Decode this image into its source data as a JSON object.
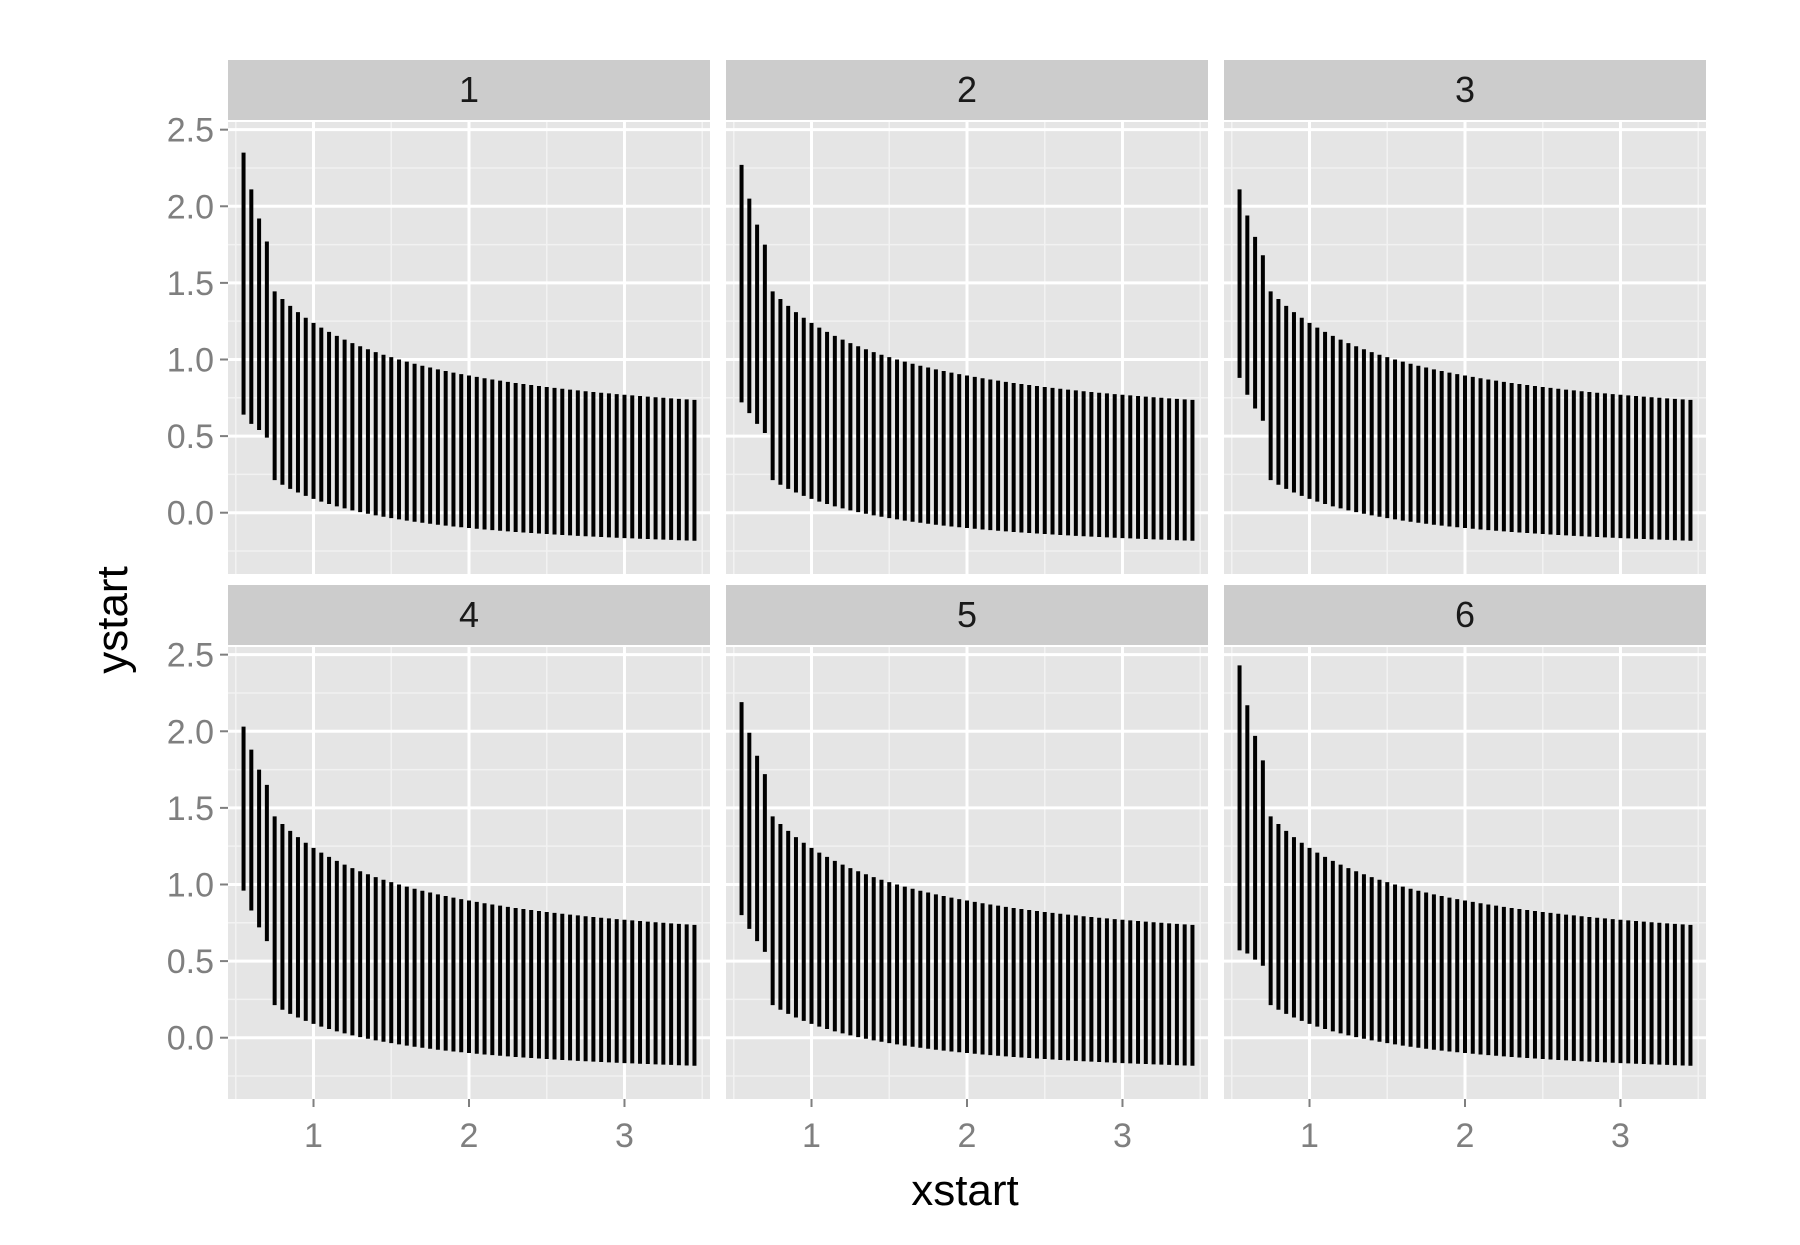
{
  "chart_data": {
    "type": "facet-segment",
    "title": "",
    "xlabel": "xstart",
    "ylabel": "ystart",
    "xlim": [
      0.45,
      3.55
    ],
    "ylim": [
      -0.4,
      2.55
    ],
    "x_ticks": [
      1,
      2,
      3
    ],
    "y_ticks": [
      0.0,
      0.5,
      1.0,
      1.5,
      2.0,
      2.5
    ],
    "y_tick_labels": [
      "0.0",
      "0.5",
      "1.0",
      "1.5",
      "2.0",
      "2.5"
    ],
    "grid": true,
    "layout": {
      "rows": 2,
      "cols": 3
    },
    "segments_x": {
      "start": 0.55,
      "step": 0.05,
      "count": 59
    },
    "panels": [
      {
        "label": "1",
        "first_segments": [
          {
            "x": 0.55,
            "y_start": 0.64,
            "y_end": 2.35
          },
          {
            "x": 0.6,
            "y_start": 0.58,
            "y_end": 2.11
          },
          {
            "x": 0.65,
            "y_start": 0.54,
            "y_end": 1.92
          },
          {
            "x": 0.7,
            "y_start": 0.49,
            "y_end": 1.77
          }
        ]
      },
      {
        "label": "2",
        "first_segments": [
          {
            "x": 0.55,
            "y_start": 0.72,
            "y_end": 2.27
          },
          {
            "x": 0.6,
            "y_start": 0.65,
            "y_end": 2.05
          },
          {
            "x": 0.65,
            "y_start": 0.58,
            "y_end": 1.88
          },
          {
            "x": 0.7,
            "y_start": 0.52,
            "y_end": 1.75
          }
        ]
      },
      {
        "label": "3",
        "first_segments": [
          {
            "x": 0.55,
            "y_start": 0.88,
            "y_end": 2.11
          },
          {
            "x": 0.6,
            "y_start": 0.77,
            "y_end": 1.94
          },
          {
            "x": 0.65,
            "y_start": 0.68,
            "y_end": 1.8
          },
          {
            "x": 0.7,
            "y_start": 0.6,
            "y_end": 1.68
          }
        ]
      },
      {
        "label": "4",
        "first_segments": [
          {
            "x": 0.55,
            "y_start": 0.96,
            "y_end": 2.03
          },
          {
            "x": 0.6,
            "y_start": 0.83,
            "y_end": 1.88
          },
          {
            "x": 0.65,
            "y_start": 0.72,
            "y_end": 1.75
          },
          {
            "x": 0.7,
            "y_start": 0.63,
            "y_end": 1.65
          }
        ]
      },
      {
        "label": "5",
        "first_segments": [
          {
            "x": 0.55,
            "y_start": 0.8,
            "y_end": 2.19
          },
          {
            "x": 0.6,
            "y_start": 0.71,
            "y_end": 1.99
          },
          {
            "x": 0.65,
            "y_start": 0.63,
            "y_end": 1.84
          },
          {
            "x": 0.7,
            "y_start": 0.56,
            "y_end": 1.72
          }
        ]
      },
      {
        "label": "6",
        "first_segments": [
          {
            "x": 0.55,
            "y_start": 0.57,
            "y_end": 2.43
          },
          {
            "x": 0.6,
            "y_start": 0.55,
            "y_end": 2.17
          },
          {
            "x": 0.65,
            "y_start": 0.51,
            "y_end": 1.97
          },
          {
            "x": 0.7,
            "y_start": 0.47,
            "y_end": 1.81
          }
        ]
      }
    ],
    "colors": {
      "panel_bg": "#e5e5e5",
      "strip_bg": "#cccccc",
      "grid_major": "#ffffff",
      "grid_minor": "#f2f2f2",
      "segment": "#000000",
      "tick_text": "#7f7f7f"
    }
  }
}
